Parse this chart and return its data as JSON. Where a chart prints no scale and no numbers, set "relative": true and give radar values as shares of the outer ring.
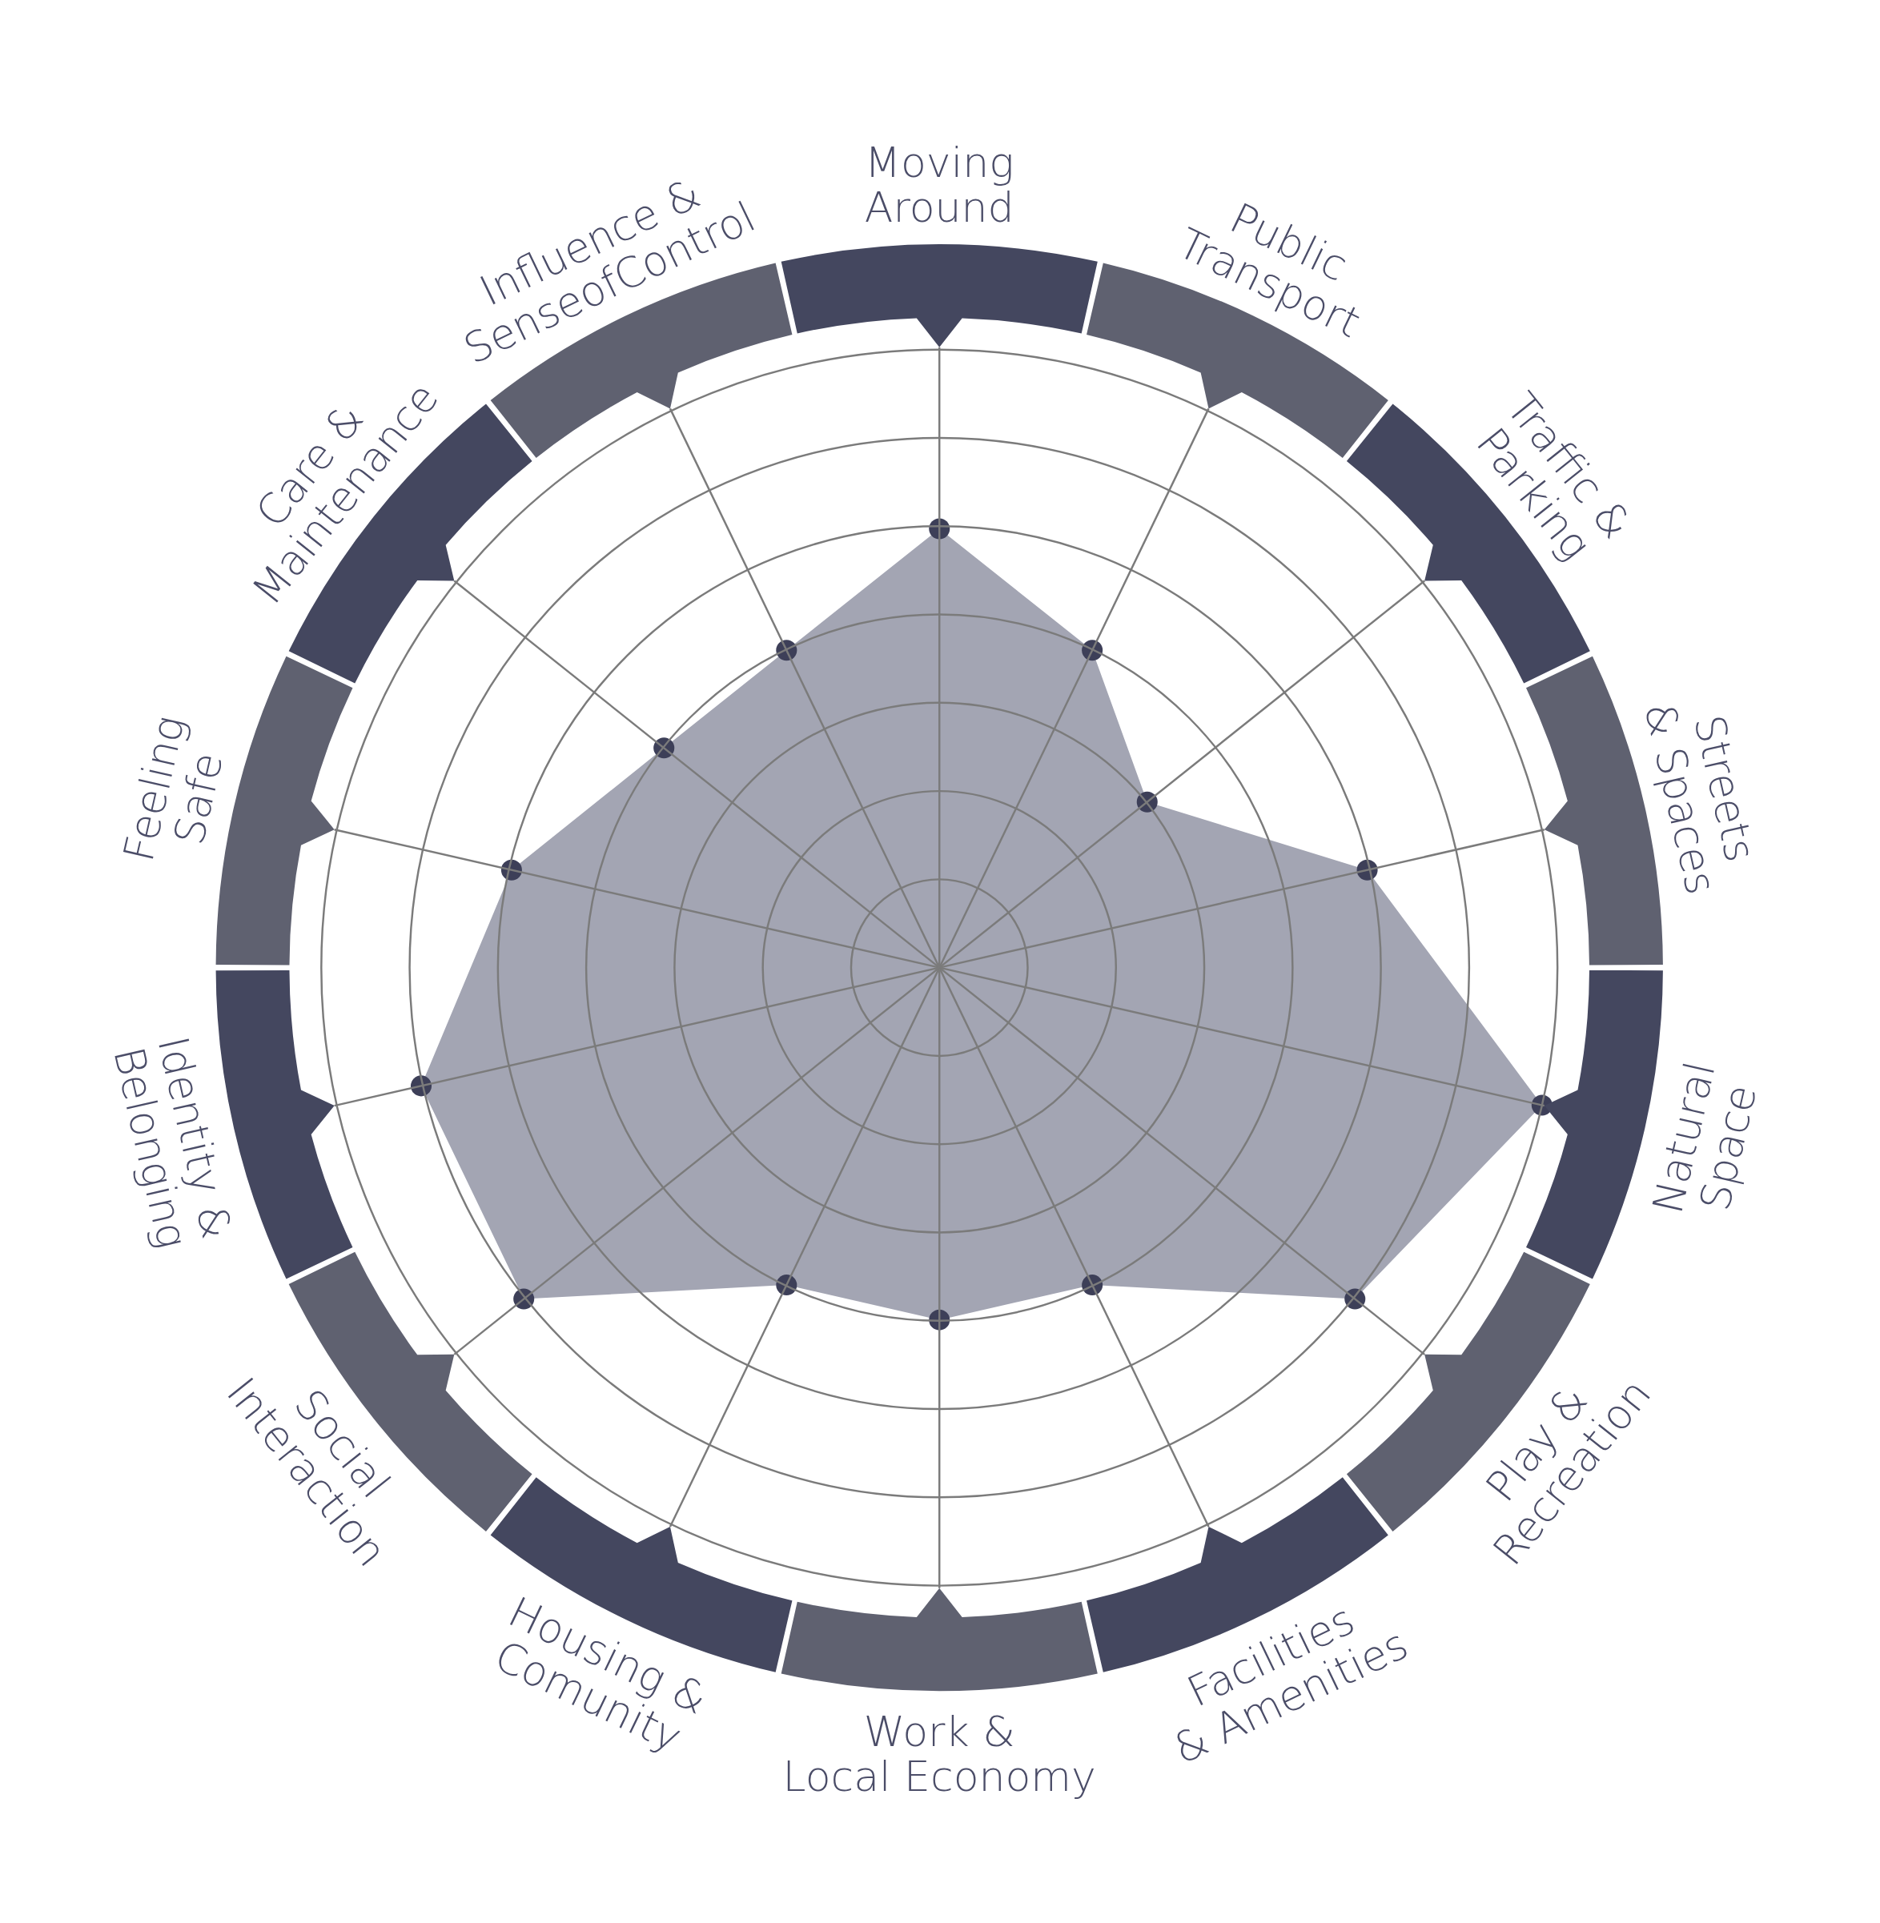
{
  "chart_data": {
    "type": "radar",
    "relative": true,
    "grid": true,
    "marker": "circle",
    "categories": [
      "Moving\nAround",
      "Public\nTransport",
      "Traffic &\nParking",
      "Streets\n& Spaces",
      "Natural\nSpace",
      "Play &\nRecreation",
      "Facilities\n& Amenities",
      "Work &\nLocal Economy",
      "Housing &\nComunity",
      "Social\nInteraction",
      "Identity &\nBelonging",
      "Feeling\nSafe",
      "Care &\nMaintenance",
      "Influence &\nSenseofControl"
    ],
    "series": [
      {
        "color": "#a3a5b3",
        "values": [
          0.71,
          0.57,
          0.43,
          0.71,
          1,
          0.86,
          0.57,
          0.57,
          0.57,
          0.86,
          0.86,
          0.71,
          0.57,
          0.57
        ]
      }
    ]
  }
}
